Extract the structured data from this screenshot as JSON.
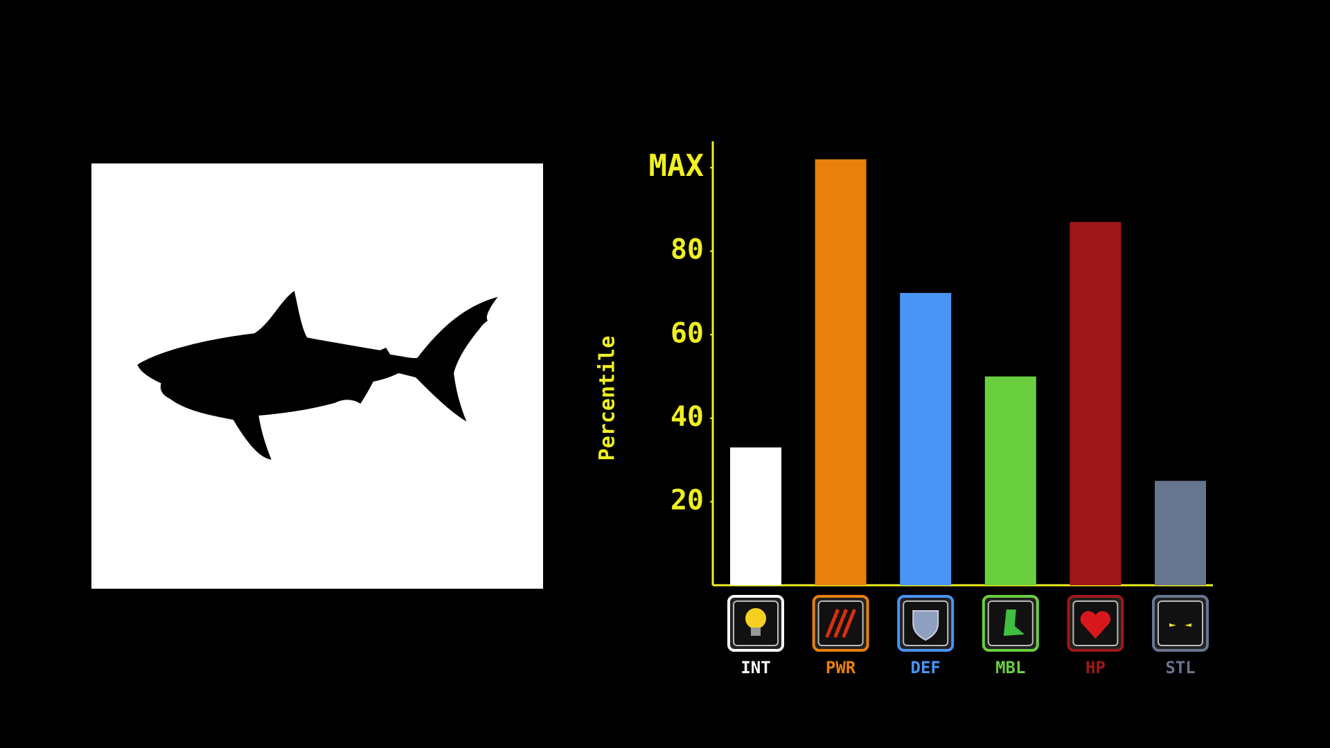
{
  "chart_data": {
    "type": "bar",
    "y_label": "Percentile",
    "categories": [
      "INT",
      "PWR",
      "DEF",
      "MBL",
      "HP",
      "STL"
    ],
    "values": [
      33,
      102,
      70,
      50,
      87,
      25
    ],
    "colors": [
      "#ffffff",
      "#e8800c",
      "#4a94f5",
      "#6acf3e",
      "#a0171a",
      "#67768f"
    ],
    "axis_color": "#f0f020",
    "ylim": [
      0,
      104
    ],
    "yticks": [
      20,
      40,
      60,
      80,
      {
        "value": 100,
        "label": "MAX"
      }
    ]
  }
}
